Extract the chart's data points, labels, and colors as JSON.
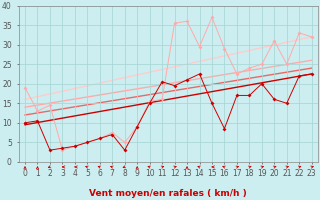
{
  "xlabel": "Vent moyen/en rafales ( km/h )",
  "xlim": [
    -0.5,
    23.5
  ],
  "ylim": [
    0,
    40
  ],
  "xticks": [
    0,
    1,
    2,
    3,
    4,
    5,
    6,
    7,
    8,
    9,
    10,
    11,
    12,
    13,
    14,
    15,
    16,
    17,
    18,
    19,
    20,
    21,
    22,
    23
  ],
  "yticks": [
    0,
    5,
    10,
    15,
    20,
    25,
    30,
    35,
    40
  ],
  "bg_color": "#cceef0",
  "grid_color": "#aad8d8",
  "line1_x": [
    0,
    1,
    2,
    3,
    4,
    5,
    6,
    7,
    8,
    9,
    10,
    11,
    12,
    13,
    14,
    15,
    16,
    17,
    18,
    19,
    20,
    21,
    22,
    23
  ],
  "line1_y": [
    10,
    10.5,
    3,
    3.5,
    4,
    5,
    6,
    7,
    3,
    9,
    15,
    20.5,
    19.5,
    21,
    22.5,
    15,
    8.5,
    17,
    17,
    20,
    16,
    15,
    22,
    22.5
  ],
  "line1_color": "#cc0000",
  "line2_x": [
    0,
    1,
    2,
    3,
    4,
    5,
    6,
    7,
    8,
    9,
    10,
    11,
    12,
    13,
    14,
    15,
    16,
    17,
    18,
    19,
    20,
    21,
    22,
    23
  ],
  "line2_y": [
    19,
    13,
    14.5,
    3,
    4,
    5,
    6,
    7.5,
    5,
    9,
    15.5,
    16,
    35.5,
    36,
    29.5,
    37,
    29,
    22.5,
    24,
    25,
    31,
    25,
    33,
    32
  ],
  "line2_color": "#ffaaaa",
  "trend1_x": [
    0,
    23
  ],
  "trend1_y": [
    9.5,
    22.5
  ],
  "trend1_color": "#cc0000",
  "trend2_x": [
    0,
    23
  ],
  "trend2_y": [
    12,
    24
  ],
  "trend2_color": "#ee6666",
  "trend3_x": [
    0,
    23
  ],
  "trend3_y": [
    14,
    26
  ],
  "trend3_color": "#ffaaaa",
  "trend4_x": [
    0,
    23
  ],
  "trend4_y": [
    16,
    32
  ],
  "trend4_color": "#ffcccc",
  "xlabel_color": "#cc0000",
  "xlabel_fontsize": 6.5,
  "tick_fontsize": 5.5,
  "tick_color": "#555555",
  "arrow_directions": [
    0,
    0,
    225,
    270,
    270,
    315,
    315,
    315,
    225,
    0,
    315,
    45,
    45,
    0,
    315,
    270,
    315,
    45,
    45,
    45,
    45,
    45,
    45,
    45
  ],
  "arrow_color": "#cc0000"
}
